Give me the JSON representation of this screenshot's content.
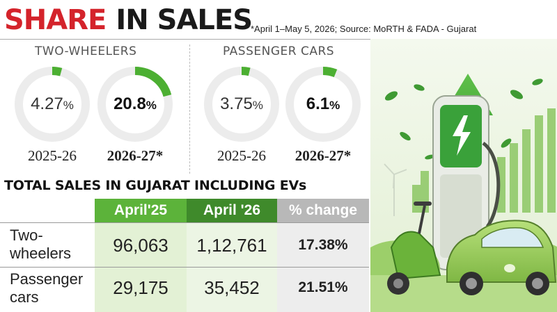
{
  "header": {
    "title_red": "SHARE",
    "title_black": "IN SALES",
    "source": "*April 1–May 5, 2026; Source: MoRTH & FADA - Gujarat"
  },
  "share": {
    "two_wheelers": {
      "label": "TWO-WHEELERS",
      "items": [
        {
          "value": "4.27",
          "unit": "%",
          "year": "2025-26",
          "fraction": 0.0427
        },
        {
          "value": "20.8",
          "unit": "%",
          "year": "2026-27*",
          "fraction": 0.208
        }
      ]
    },
    "passenger_cars": {
      "label": "PASSENGER CARS",
      "items": [
        {
          "value": "3.75",
          "unit": "%",
          "year": "2025-26",
          "fraction": 0.0375
        },
        {
          "value": "6.1",
          "unit": "%",
          "year": "2026-27*",
          "fraction": 0.061
        }
      ]
    }
  },
  "table": {
    "title": "TOTAL SALES IN GUJARAT INCLUDING EVs",
    "headers": [
      "April'25",
      "April '26",
      "% change"
    ],
    "rows": [
      {
        "label_line1": "Two-",
        "label_line2": "wheelers",
        "apr25": "96,063",
        "apr26": "1,12,761",
        "change": "17.38%"
      },
      {
        "label_line1": "Passenger",
        "label_line2": "cars",
        "apr25": "29,175",
        "apr26": "35,452",
        "change": "21.51%"
      }
    ]
  },
  "colors": {
    "title_red": "#d4232b",
    "ring_green": "#4caf32",
    "ring_track": "#ececec",
    "header_green": "#5cb33a",
    "header_dark_green": "#3f8a2b",
    "header_gray": "#b8b8b8",
    "col_green_light": "#e3f1d5",
    "col_green_lighter": "#ecf5e4",
    "col_gray_light": "#ededed"
  },
  "chart_data": [
    {
      "type": "pie",
      "title": "TWO-WHEELERS",
      "categories": [
        "2025-26",
        "2026-27*"
      ],
      "values": [
        4.27,
        20.8
      ],
      "unit": "%"
    },
    {
      "type": "pie",
      "title": "PASSENGER CARS",
      "categories": [
        "2025-26",
        "2026-27*"
      ],
      "values": [
        3.75,
        6.1
      ],
      "unit": "%"
    },
    {
      "type": "table",
      "title": "TOTAL SALES IN GUJARAT INCLUDING EVs",
      "columns": [
        "April'25",
        "April '26",
        "% change"
      ],
      "rows": [
        {
          "label": "Two-wheelers",
          "values": [
            96063,
            112761,
            17.38
          ]
        },
        {
          "label": "Passenger cars",
          "values": [
            29175,
            35452,
            21.51
          ]
        }
      ]
    }
  ]
}
